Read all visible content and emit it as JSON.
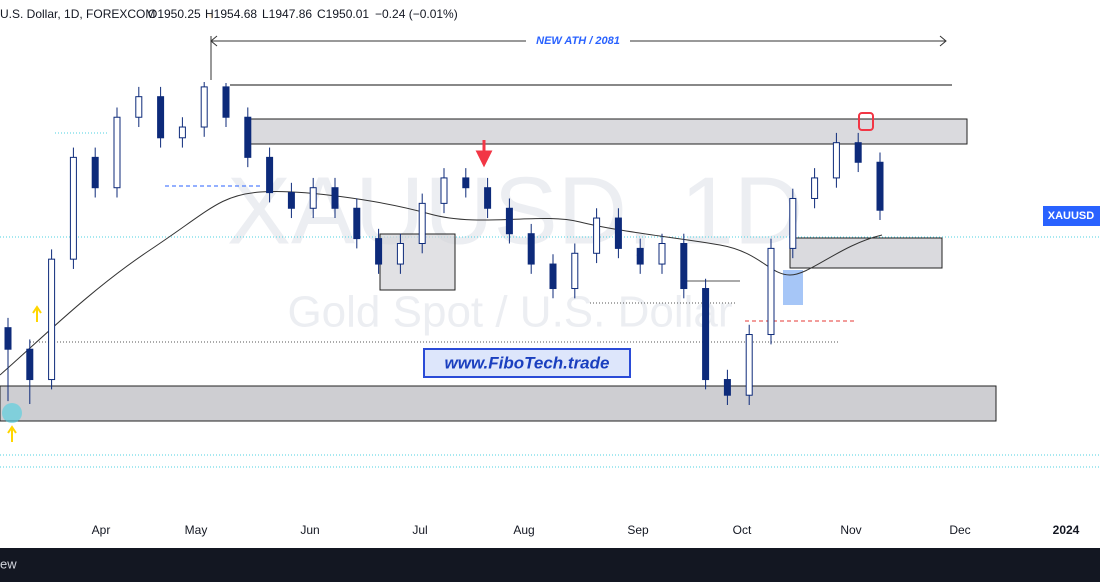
{
  "header": {
    "symbol": "U.S. Dollar, 1D, FOREXCOM",
    "open": "O1950.25",
    "high": "H1954.68",
    "low": "L1947.86",
    "close": "C1950.01",
    "change": "−0.24 (−0.01%)"
  },
  "chart": {
    "type": "candlestick",
    "watermark": "XAUUSD, 1D",
    "watermark_sub": "Gold Spot / U.S. Dollar",
    "annotation": "NEW ATH / 2081",
    "promo": "www.FiboTech.trade",
    "price_tag": "XAUUSD",
    "color": "#0d2a7a",
    "x_labels": [
      "Apr",
      "May",
      "Jun",
      "Jul",
      "Aug",
      "Sep",
      "Oct",
      "Nov",
      "Dec",
      "2024"
    ],
    "candles": [
      {
        "o": 1830,
        "h": 1840,
        "l": 1755,
        "c": 1808
      },
      {
        "o": 1808,
        "h": 1818,
        "l": 1752,
        "c": 1777
      },
      {
        "o": 1777,
        "h": 1910,
        "l": 1767,
        "c": 1900
      },
      {
        "o": 1900,
        "h": 2014,
        "l": 1890,
        "c": 2004
      },
      {
        "o": 2004,
        "h": 2014,
        "l": 1963,
        "c": 1973
      },
      {
        "o": 1973,
        "h": 2055,
        "l": 1963,
        "c": 2045
      },
      {
        "o": 2045,
        "h": 2076,
        "l": 2035,
        "c": 2066
      },
      {
        "o": 2066,
        "h": 2076,
        "l": 2014,
        "c": 2024
      },
      {
        "o": 2024,
        "h": 2045,
        "l": 2014,
        "c": 2035
      },
      {
        "o": 2035,
        "h": 2081,
        "l": 2025,
        "c": 2076
      },
      {
        "o": 2076,
        "h": 2080,
        "l": 2035,
        "c": 2045
      },
      {
        "o": 2045,
        "h": 2055,
        "l": 1994,
        "c": 2004
      },
      {
        "o": 2004,
        "h": 2014,
        "l": 1958,
        "c": 1968
      },
      {
        "o": 1968,
        "h": 1978,
        "l": 1942,
        "c": 1952
      },
      {
        "o": 1952,
        "h": 1983,
        "l": 1942,
        "c": 1973
      },
      {
        "o": 1973,
        "h": 1983,
        "l": 1942,
        "c": 1952
      },
      {
        "o": 1952,
        "h": 1962,
        "l": 1911,
        "c": 1921
      },
      {
        "o": 1921,
        "h": 1931,
        "l": 1885,
        "c": 1895
      },
      {
        "o": 1895,
        "h": 1926,
        "l": 1885,
        "c": 1916
      },
      {
        "o": 1916,
        "h": 1967,
        "l": 1906,
        "c": 1957
      },
      {
        "o": 1957,
        "h": 1993,
        "l": 1947,
        "c": 1983
      },
      {
        "o": 1983,
        "h": 1993,
        "l": 1963,
        "c": 1973
      },
      {
        "o": 1973,
        "h": 1983,
        "l": 1942,
        "c": 1952
      },
      {
        "o": 1952,
        "h": 1962,
        "l": 1916,
        "c": 1926
      },
      {
        "o": 1926,
        "h": 1936,
        "l": 1885,
        "c": 1895
      },
      {
        "o": 1895,
        "h": 1905,
        "l": 1860,
        "c": 1870
      },
      {
        "o": 1870,
        "h": 1916,
        "l": 1860,
        "c": 1906
      },
      {
        "o": 1906,
        "h": 1952,
        "l": 1896,
        "c": 1942
      },
      {
        "o": 1942,
        "h": 1952,
        "l": 1901,
        "c": 1911
      },
      {
        "o": 1911,
        "h": 1921,
        "l": 1885,
        "c": 1895
      },
      {
        "o": 1895,
        "h": 1926,
        "l": 1885,
        "c": 1916
      },
      {
        "o": 1916,
        "h": 1926,
        "l": 1860,
        "c": 1870
      },
      {
        "o": 1870,
        "h": 1880,
        "l": 1767,
        "c": 1777
      },
      {
        "o": 1777,
        "h": 1787,
        "l": 1751,
        "c": 1761
      },
      {
        "o": 1761,
        "h": 1833,
        "l": 1751,
        "c": 1823
      },
      {
        "o": 1823,
        "h": 1921,
        "l": 1813,
        "c": 1911
      },
      {
        "o": 1911,
        "h": 1972,
        "l": 1901,
        "c": 1962
      },
      {
        "o": 1962,
        "h": 1993,
        "l": 1952,
        "c": 1983
      },
      {
        "o": 1983,
        "h": 2029,
        "l": 1973,
        "c": 2019
      },
      {
        "o": 2019,
        "h": 2029,
        "l": 1989,
        "c": 1999
      },
      {
        "o": 1999,
        "h": 2009,
        "l": 1940,
        "c": 1950
      }
    ]
  },
  "footer": {
    "text": "ew"
  }
}
